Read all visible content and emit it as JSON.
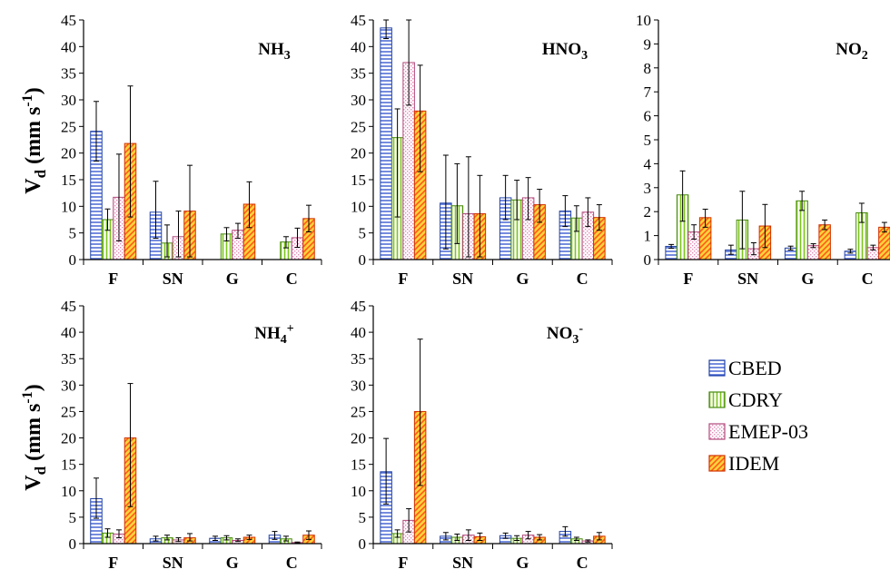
{
  "series_names": [
    "CBED",
    "CDRY",
    "EMEP-03",
    "IDEM"
  ],
  "y_label": {
    "base": "V",
    "sub": "d",
    "units_pre": " (mm s",
    "units_sup": "-1",
    "units_post": ")"
  },
  "legend": {
    "entries": [
      "CBED",
      "CDRY",
      "EMEP-03",
      "IDEM"
    ]
  },
  "colors": {
    "CBED": {
      "stroke": "#2243a8",
      "fill": "#ffffff",
      "pattern": "horizontal-lines",
      "line": "#3a5bd0"
    },
    "CDRY": {
      "stroke": "#4a8a10",
      "fill": "#ffffff",
      "pattern": "vertical-lines",
      "line": "#7cc41a"
    },
    "EMEP-03": {
      "stroke": "#b0487a",
      "fill": "#ffffff",
      "pattern": "dots",
      "line": "#e68ab8"
    },
    "IDEM": {
      "stroke": "#d03000",
      "fill": "#ffd23a",
      "pattern": "diagonal-lines",
      "line": "#ff5a1a"
    }
  },
  "chart_data": [
    {
      "type": "bar",
      "title": {
        "pre": "NH",
        "sub": "3",
        "sup": ""
      },
      "categories": [
        "F",
        "SN",
        "G",
        "C"
      ],
      "ylim": [
        0,
        45
      ],
      "yticks": [
        0,
        5,
        10,
        15,
        20,
        25,
        30,
        35,
        40,
        45
      ],
      "series": [
        {
          "name": "CBED",
          "values": [
            24.1,
            8.9,
            null,
            null
          ],
          "err_low": [
            18.5,
            4.0,
            null,
            null
          ],
          "err_high": [
            29.7,
            14.7,
            null,
            null
          ]
        },
        {
          "name": "CDRY",
          "values": [
            7.5,
            3.1,
            4.8,
            3.3
          ],
          "err_low": [
            5.5,
            0.5,
            3.5,
            2.2
          ],
          "err_high": [
            9.5,
            6.5,
            6.0,
            4.3
          ]
        },
        {
          "name": "EMEP-03",
          "values": [
            11.7,
            4.3,
            5.5,
            4.1
          ],
          "err_low": [
            3.5,
            0.5,
            4.0,
            2.3
          ],
          "err_high": [
            19.8,
            9.1,
            6.8,
            5.9
          ]
        },
        {
          "name": "IDEM",
          "values": [
            21.8,
            9.1,
            10.4,
            7.7
          ],
          "err_low": [
            8.0,
            0.5,
            6.0,
            5.2
          ],
          "err_high": [
            32.6,
            17.7,
            14.6,
            10.2
          ]
        }
      ]
    },
    {
      "type": "bar",
      "title": {
        "pre": "HNO",
        "sub": "3",
        "sup": ""
      },
      "categories": [
        "F",
        "SN",
        "G",
        "C"
      ],
      "ylim": [
        0,
        45
      ],
      "yticks": [
        0,
        5,
        10,
        15,
        20,
        25,
        30,
        35,
        40,
        45
      ],
      "series": [
        {
          "name": "CBED",
          "values": [
            43.5,
            10.6,
            11.6,
            9.1
          ],
          "err_low": [
            41.5,
            2.0,
            7.5,
            6.2
          ],
          "err_high": [
            45.0,
            19.6,
            15.8,
            12.0
          ]
        },
        {
          "name": "CDRY",
          "values": [
            22.9,
            10.1,
            11.2,
            7.8
          ],
          "err_low": [
            8.0,
            3.0,
            7.5,
            5.3
          ],
          "err_high": [
            28.3,
            18.0,
            14.9,
            10.1
          ]
        },
        {
          "name": "EMEP-03",
          "values": [
            37.0,
            8.6,
            11.6,
            8.9
          ],
          "err_low": [
            29.0,
            0.5,
            7.5,
            6.2
          ],
          "err_high": [
            45.0,
            19.3,
            15.4,
            11.6
          ]
        },
        {
          "name": "IDEM",
          "values": [
            27.9,
            8.6,
            10.3,
            7.9
          ],
          "err_low": [
            16.5,
            0.5,
            7.0,
            5.5
          ],
          "err_high": [
            36.5,
            15.8,
            13.2,
            10.3
          ]
        }
      ]
    },
    {
      "type": "bar",
      "title": {
        "pre": "NO",
        "sub": "2",
        "sup": ""
      },
      "categories": [
        "F",
        "SN",
        "G",
        "C"
      ],
      "ylim": [
        0,
        10
      ],
      "yticks": [
        0,
        1,
        2,
        3,
        4,
        5,
        6,
        7,
        8,
        9,
        10
      ],
      "series": [
        {
          "name": "CBED",
          "values": [
            0.55,
            0.4,
            0.48,
            0.35
          ],
          "err_low": [
            0.47,
            0.22,
            0.4,
            0.27
          ],
          "err_high": [
            0.63,
            0.6,
            0.56,
            0.43
          ]
        },
        {
          "name": "CDRY",
          "values": [
            2.7,
            1.65,
            2.45,
            1.95
          ],
          "err_low": [
            1.6,
            0.45,
            2.05,
            1.55
          ],
          "err_high": [
            3.7,
            2.85,
            2.85,
            2.35
          ]
        },
        {
          "name": "EMEP-03",
          "values": [
            1.15,
            0.45,
            0.58,
            0.5
          ],
          "err_low": [
            0.85,
            0.2,
            0.5,
            0.4
          ],
          "err_high": [
            1.45,
            0.7,
            0.66,
            0.6
          ]
        },
        {
          "name": "IDEM",
          "values": [
            1.75,
            1.4,
            1.45,
            1.35
          ],
          "err_low": [
            1.35,
            0.5,
            1.25,
            1.15
          ],
          "err_high": [
            2.1,
            2.3,
            1.65,
            1.55
          ]
        }
      ]
    },
    {
      "type": "bar",
      "title": {
        "pre": "NH",
        "sub": "4",
        "sup": "+"
      },
      "categories": [
        "F",
        "SN",
        "G",
        "C"
      ],
      "ylim": [
        0,
        45
      ],
      "yticks": [
        0,
        5,
        10,
        15,
        20,
        25,
        30,
        35,
        40,
        45
      ],
      "series": [
        {
          "name": "CBED",
          "values": [
            8.5,
            0.9,
            1.0,
            1.6
          ],
          "err_low": [
            4.8,
            0.5,
            0.6,
            0.8
          ],
          "err_high": [
            12.4,
            1.4,
            1.4,
            2.3
          ]
        },
        {
          "name": "CDRY",
          "values": [
            2.0,
            1.1,
            1.1,
            0.9
          ],
          "err_low": [
            1.2,
            0.7,
            0.7,
            0.5
          ],
          "err_high": [
            2.8,
            1.6,
            1.5,
            1.4
          ]
        },
        {
          "name": "EMEP-03",
          "values": [
            1.8,
            0.7,
            0.6,
            0.2
          ],
          "err_low": [
            1.1,
            0.4,
            0.4,
            0.1
          ],
          "err_high": [
            2.6,
            1.1,
            0.9,
            0.3
          ]
        },
        {
          "name": "IDEM",
          "values": [
            20.0,
            1.1,
            1.2,
            1.6
          ],
          "err_low": [
            7.0,
            0.5,
            0.8,
            0.8
          ],
          "err_high": [
            30.3,
            1.9,
            1.6,
            2.4
          ]
        }
      ]
    },
    {
      "type": "bar",
      "title": {
        "pre": "NO",
        "sub": "3",
        "sup": "-"
      },
      "categories": [
        "F",
        "SN",
        "G",
        "C"
      ],
      "ylim": [
        0,
        45
      ],
      "yticks": [
        0,
        5,
        10,
        15,
        20,
        25,
        30,
        35,
        40,
        45
      ],
      "series": [
        {
          "name": "CBED",
          "values": [
            13.6,
            1.4,
            1.5,
            2.3
          ],
          "err_low": [
            7.5,
            0.7,
            1.0,
            1.4
          ],
          "err_high": [
            19.9,
            2.1,
            2.0,
            3.2
          ]
        },
        {
          "name": "CDRY",
          "values": [
            1.9,
            1.2,
            1.0,
            0.9
          ],
          "err_low": [
            1.2,
            0.6,
            0.6,
            0.6
          ],
          "err_high": [
            2.6,
            1.8,
            1.5,
            1.2
          ]
        },
        {
          "name": "EMEP-03",
          "values": [
            4.4,
            1.6,
            1.6,
            0.5
          ],
          "err_low": [
            2.2,
            0.6,
            0.9,
            0.3
          ],
          "err_high": [
            6.6,
            2.6,
            2.3,
            0.7
          ]
        },
        {
          "name": "IDEM",
          "values": [
            25.0,
            1.3,
            1.2,
            1.4
          ],
          "err_low": [
            11.0,
            0.6,
            0.7,
            0.7
          ],
          "err_high": [
            38.7,
            2.0,
            1.7,
            2.1
          ]
        }
      ]
    }
  ]
}
